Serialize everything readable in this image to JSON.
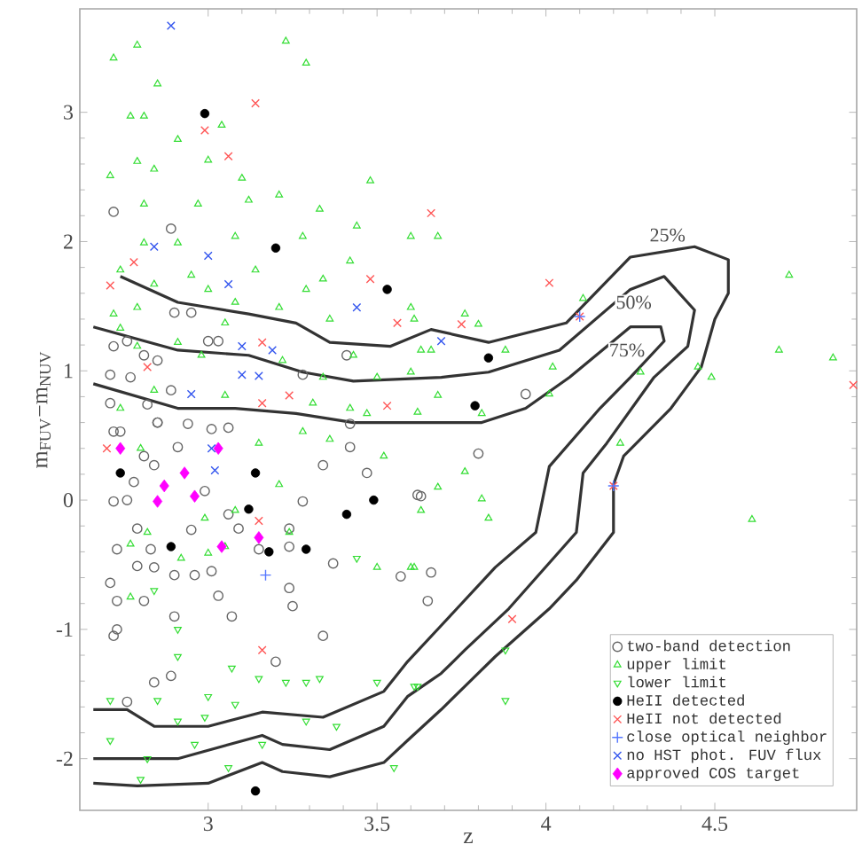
{
  "chart_data": {
    "type": "scatter",
    "xlabel": "z",
    "ylabel": "m$_{FUV}$−m$_{NUV}$",
    "xlim": [
      2.62,
      4.92
    ],
    "ylim": [
      -2.4,
      3.8
    ],
    "xticks": [
      3,
      3.5,
      4,
      4.5
    ],
    "yticks": [
      -2,
      -1,
      0,
      1,
      2,
      3
    ],
    "legend": "bottom right",
    "annotations": [
      {
        "text": "25%",
        "x": 4.36,
        "y": 2.05
      },
      {
        "text": "50%",
        "x": 4.26,
        "y": 1.53
      },
      {
        "text": "75%",
        "x": 4.24,
        "y": 1.16
      }
    ],
    "series": [
      {
        "type": "line",
        "color": "#333333",
        "marker": "none",
        "x": [
          2.74,
          2.91,
          3.12,
          3.26,
          3.36,
          3.54,
          3.66,
          3.83,
          4.06,
          4.25,
          4.44,
          4.54,
          4.54,
          4.5,
          4.46,
          4.37,
          4.23,
          4.2,
          4.2,
          4.09,
          4.01,
          3.85,
          3.69,
          3.59,
          3.52,
          3.36,
          3.22,
          3.16,
          3.0,
          2.79,
          2.66
        ],
        "values": [
          1.73,
          1.53,
          1.44,
          1.37,
          1.22,
          1.19,
          1.32,
          1.22,
          1.37,
          1.88,
          1.96,
          1.86,
          1.6,
          1.4,
          1.03,
          0.71,
          0.34,
          0.12,
          -0.25,
          -0.62,
          -0.84,
          -1.21,
          -1.62,
          -1.86,
          -2.03,
          -2.14,
          -2.1,
          -2.03,
          -2.19,
          -2.21,
          -2.19
        ]
      },
      {
        "type": "line",
        "color": "#333333",
        "marker": "none",
        "x": [
          2.66,
          2.91,
          3.12,
          3.28,
          3.43,
          3.69,
          3.83,
          4.04,
          4.25,
          4.35,
          4.44,
          4.42,
          4.32,
          4.18,
          4.11,
          4.09,
          3.89,
          3.76,
          3.69,
          3.59,
          3.52,
          3.36,
          3.22,
          3.16,
          2.91,
          2.66
        ],
        "values": [
          1.34,
          1.16,
          1.12,
          0.99,
          0.92,
          0.95,
          0.99,
          1.16,
          1.63,
          1.73,
          1.47,
          1.19,
          0.95,
          0.44,
          0.21,
          -0.25,
          -0.84,
          -1.16,
          -1.34,
          -1.52,
          -1.75,
          -1.93,
          -1.89,
          -1.82,
          -2.0,
          -2.0
        ]
      },
      {
        "type": "line",
        "color": "#333333",
        "marker": "none",
        "x": [
          2.66,
          2.91,
          3.08,
          3.26,
          3.43,
          3.81,
          3.94,
          4.07,
          4.25,
          4.34,
          4.35,
          4.25,
          4.16,
          4.01,
          3.97,
          3.85,
          3.69,
          3.59,
          3.52,
          3.34,
          3.16,
          3.0,
          2.84,
          2.76,
          2.66
        ],
        "values": [
          0.9,
          0.71,
          0.71,
          0.67,
          0.6,
          0.6,
          0.71,
          0.95,
          1.34,
          1.34,
          1.23,
          0.95,
          0.71,
          0.26,
          -0.25,
          -0.52,
          -0.97,
          -1.25,
          -1.48,
          -1.68,
          -1.64,
          -1.75,
          -1.75,
          -1.62,
          -1.62
        ]
      },
      {
        "name": "two-band detection",
        "color": "#666666",
        "marker": "circle",
        "x": [
          2.72,
          2.89,
          2.9,
          2.95,
          3.0,
          3.03,
          2.76,
          2.72,
          2.81,
          2.85,
          2.71,
          2.77,
          2.89,
          3.41,
          3.28,
          2.71,
          2.82,
          2.85,
          2.94,
          3.06,
          3.42,
          3.01,
          2.72,
          2.74,
          2.85,
          2.91,
          2.81,
          2.84,
          2.78,
          2.72,
          2.76,
          2.99,
          3.06,
          3.09,
          3.24,
          3.28,
          3.34,
          3.42,
          3.47,
          3.63,
          2.79,
          2.73,
          2.83,
          2.95,
          3.15,
          3.24,
          3.37,
          2.79,
          2.84,
          2.96,
          3.01,
          2.71,
          2.9,
          3.03,
          3.24,
          3.25,
          2.73,
          2.81,
          2.9,
          3.07,
          2.73,
          2.72,
          3.34,
          3.2,
          2.89,
          2.84,
          2.76,
          3.57,
          3.66,
          3.65,
          3.8,
          3.62,
          3.94
        ],
        "values": [
          2.23,
          2.1,
          1.45,
          1.45,
          1.23,
          1.23,
          1.23,
          1.19,
          1.12,
          1.08,
          0.97,
          0.95,
          0.85,
          1.12,
          0.97,
          0.75,
          0.74,
          0.6,
          0.59,
          0.56,
          0.59,
          0.55,
          0.53,
          0.53,
          0.6,
          0.41,
          0.34,
          0.27,
          0.14,
          -0.01,
          0.0,
          0.07,
          -0.11,
          -0.22,
          -0.22,
          -0.01,
          0.27,
          0.41,
          0.21,
          0.03,
          -0.22,
          -0.38,
          -0.38,
          -0.23,
          -0.38,
          -0.36,
          -0.49,
          -0.51,
          -0.52,
          -0.58,
          -0.55,
          -0.64,
          -0.58,
          -0.74,
          -0.68,
          -0.82,
          -0.78,
          -0.78,
          -0.9,
          -0.9,
          -1.0,
          -1.05,
          -1.05,
          -1.25,
          -1.36,
          -1.41,
          -1.56,
          -0.59,
          -0.56,
          -0.78,
          0.36,
          0.04,
          0.82
        ]
      },
      {
        "name": "upper limit",
        "color": "#33dd33",
        "marker": "triangle",
        "x": [
          3.23,
          3.29,
          2.79,
          2.72,
          2.85,
          2.77,
          2.81,
          3.04,
          2.91,
          2.79,
          2.84,
          3.0,
          2.71,
          3.1,
          3.48,
          3.12,
          2.97,
          2.81,
          3.21,
          3.33,
          3.44,
          3.6,
          2.81,
          2.91,
          3.08,
          3.28,
          3.42,
          2.74,
          2.95,
          3.14,
          3.29,
          3.34,
          3.0,
          2.84,
          3.08,
          3.21,
          2.79,
          3.6,
          2.72,
          3.05,
          3.36,
          3.66,
          3.43,
          2.74,
          2.79,
          2.91,
          2.98,
          3.22,
          3.34,
          3.5,
          3.6,
          2.84,
          3.05,
          3.31,
          3.42,
          2.74,
          3.47,
          3.68,
          4.72,
          4.69,
          4.85,
          3.76,
          3.8,
          3.61,
          3.88,
          3.63,
          4.11,
          4.02,
          4.28,
          4.45,
          4.49,
          3.68,
          4.01,
          3.81,
          4.22,
          4.61,
          3.76,
          3.68,
          3.81,
          3.83,
          3.61,
          3.62,
          2.8,
          3.15,
          3.21,
          3.28,
          3.36,
          3.52,
          2.99,
          3.05,
          2.82,
          3.0,
          2.92,
          2.77,
          3.24,
          3.08,
          3.63,
          3.6,
          3.5,
          2.77
        ],
        "values": [
          3.55,
          3.38,
          3.52,
          3.42,
          3.22,
          2.97,
          2.97,
          2.9,
          2.79,
          2.62,
          2.56,
          2.63,
          2.51,
          2.49,
          2.47,
          2.32,
          2.29,
          2.29,
          2.36,
          2.25,
          2.12,
          2.04,
          1.99,
          1.99,
          2.04,
          2.04,
          1.85,
          1.78,
          1.74,
          1.78,
          1.63,
          1.71,
          1.63,
          1.67,
          1.53,
          1.49,
          1.49,
          1.49,
          1.44,
          1.37,
          1.4,
          1.16,
          1.12,
          1.33,
          1.19,
          1.22,
          1.12,
          1.08,
          0.95,
          0.95,
          0.99,
          0.85,
          0.81,
          0.75,
          0.71,
          0.71,
          0.67,
          2.04,
          1.74,
          1.16,
          1.1,
          1.44,
          1.36,
          1.4,
          1.16,
          1.16,
          1.56,
          1.03,
          0.99,
          1.03,
          0.95,
          0.81,
          0.82,
          0.67,
          0.44,
          -0.15,
          0.22,
          0.1,
          0.01,
          -0.14,
          -0.52,
          0.68,
          0.4,
          0.44,
          0.12,
          0.53,
          0.47,
          0.34,
          -0.14,
          -0.36,
          -0.25,
          -0.41,
          -0.45,
          -0.34,
          -0.25,
          -0.08,
          -0.08,
          -0.52,
          -0.52,
          -0.75
        ]
      },
      {
        "name": "lower limit",
        "color": "#33dd33",
        "marker": "triangle-down",
        "x": [
          2.71,
          2.85,
          3.0,
          3.08,
          3.15,
          3.23,
          3.29,
          3.33,
          2.91,
          3.07,
          2.91,
          2.99,
          3.29,
          3.38,
          3.5,
          3.61,
          2.71,
          2.82,
          2.96,
          3.16,
          2.8,
          3.06,
          3.55,
          2.91,
          2.84,
          3.44,
          3.62,
          3.88,
          3.88
        ],
        "values": [
          -1.55,
          -1.55,
          -1.52,
          -1.58,
          -1.38,
          -1.41,
          -1.41,
          -1.38,
          -1.21,
          -1.3,
          -1.71,
          -1.68,
          -1.71,
          -1.75,
          -1.41,
          -1.44,
          -1.86,
          -2.0,
          -1.89,
          -1.89,
          -2.16,
          -2.07,
          -2.07,
          -1.0,
          -0.7,
          -0.45,
          -1.44,
          -1.55,
          -1.16
        ]
      },
      {
        "name": "HeII detected",
        "color": "#000000",
        "marker": "filled_circle",
        "x": [
          2.99,
          3.2,
          3.53,
          3.83,
          3.79,
          2.74,
          3.14,
          3.12,
          2.89,
          3.18,
          3.29,
          3.41,
          3.49,
          3.14
        ],
        "values": [
          2.99,
          1.95,
          1.63,
          1.1,
          0.73,
          0.21,
          0.21,
          -0.07,
          -0.36,
          -0.4,
          -0.38,
          -0.11,
          0.0,
          -2.25
        ]
      },
      {
        "name": "HeII not detected",
        "color": "#ff5555",
        "marker": "cross",
        "x": [
          2.99,
          3.14,
          3.06,
          2.71,
          2.78,
          3.66,
          3.48,
          3.56,
          3.16,
          2.82,
          3.24,
          3.16,
          3.53,
          4.01,
          3.75,
          4.1,
          4.91,
          2.7,
          3.15,
          3.16,
          3.9,
          4.2
        ],
        "values": [
          2.86,
          3.07,
          2.66,
          1.66,
          1.84,
          2.22,
          1.71,
          1.37,
          1.22,
          1.03,
          0.81,
          0.75,
          0.73,
          1.68,
          1.36,
          1.42,
          0.89,
          0.4,
          -0.16,
          -1.16,
          -0.92,
          0.11
        ]
      },
      {
        "name": "close optical neighbor",
        "color": "#5577ff",
        "marker": "plus",
        "x": [
          3.17,
          4.1,
          4.2
        ],
        "values": [
          -0.58,
          1.42,
          0.11
        ]
      },
      {
        "name": "no HST phot. FUV flux",
        "color": "#3355ee",
        "marker": "cross",
        "x": [
          2.89,
          2.84,
          3.0,
          3.06,
          3.44,
          3.1,
          3.19,
          3.1,
          3.15,
          2.95,
          3.69,
          3.01,
          3.02
        ],
        "values": [
          3.67,
          1.96,
          1.89,
          1.67,
          1.49,
          1.19,
          1.16,
          0.97,
          0.96,
          0.82,
          1.23,
          0.4,
          0.23
        ]
      },
      {
        "name": "approved COS target",
        "color": "#ff00ff",
        "marker": "diamond",
        "x": [
          2.74,
          3.03,
          2.93,
          2.87,
          2.85,
          2.96,
          3.04,
          3.15
        ],
        "values": [
          0.4,
          0.4,
          0.21,
          0.11,
          -0.01,
          0.03,
          -0.36,
          -0.29
        ]
      }
    ]
  }
}
